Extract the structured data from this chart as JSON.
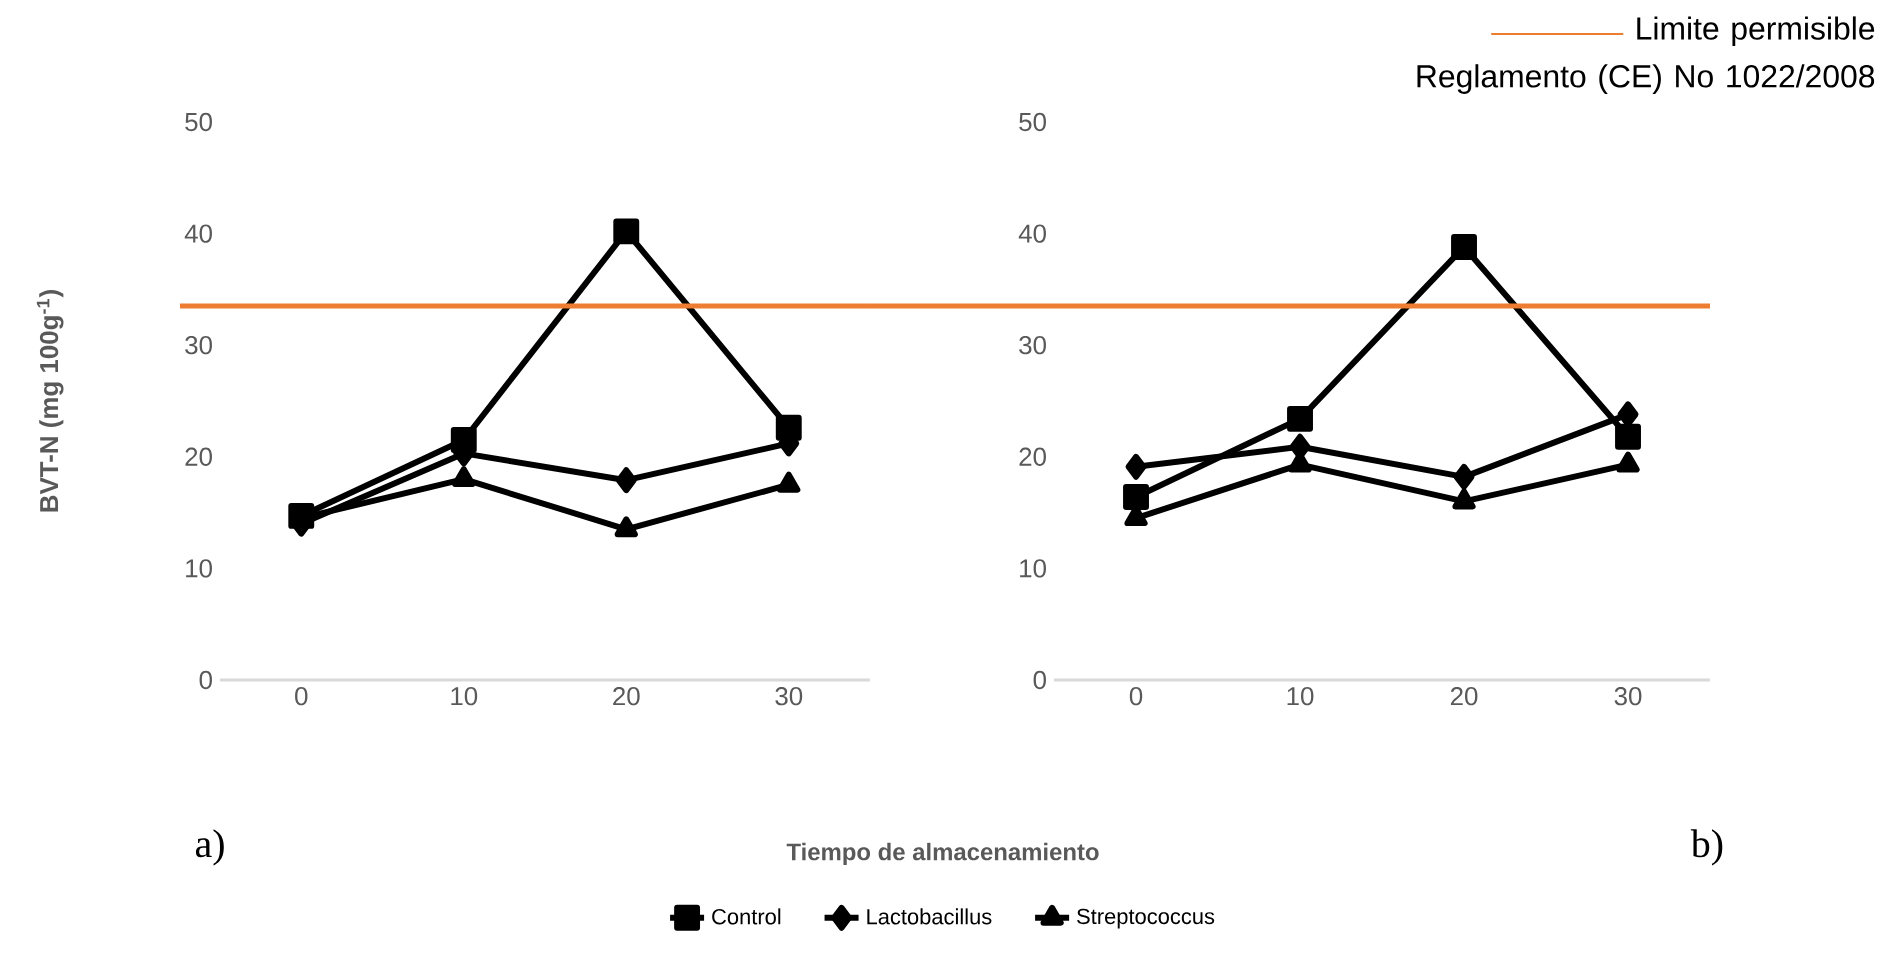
{
  "chart_data": [
    {
      "type": "line",
      "ylabel": "BVT-N (mg 100g$^{-1}$)",
      "xlabel": "Tiempo de almacenamiento",
      "categories": [
        "0",
        "10",
        "20",
        "30"
      ],
      "ylim": [
        0,
        50
      ],
      "yticks": [
        0,
        10,
        20,
        30,
        40,
        50
      ],
      "legend": "bottom",
      "series": [
        {
          "name": "Control",
          "color": "#000000",
          "marker": "square",
          "values": [
            14.7,
            21.5,
            40.2,
            22.6
          ]
        },
        {
          "name": "Lactobacillus",
          "color": "#000000",
          "marker": "diamond",
          "values": [
            14.0,
            20.3,
            17.9,
            21.2
          ]
        },
        {
          "name": "Streptococcus",
          "color": "#000000",
          "marker": "triangle",
          "values": [
            14.5,
            18.0,
            13.5,
            17.5
          ]
        }
      ],
      "ref_lines": [
        {
          "axis": "y",
          "value": 33.5,
          "color": "#ed7d31"
        }
      ],
      "annotations": [
        "a)"
      ]
    },
    {
      "type": "line",
      "categories": [
        "0",
        "10",
        "20",
        "30"
      ],
      "ylim": [
        0,
        50
      ],
      "yticks": [
        0,
        10,
        20,
        30,
        40,
        50
      ],
      "series": [
        {
          "color": "#000000",
          "marker": "square",
          "values": [
            16.4,
            23.4,
            38.8,
            21.8
          ]
        },
        {
          "color": "#000000",
          "marker": "diamond",
          "values": [
            19.1,
            20.9,
            18.2,
            23.8
          ]
        },
        {
          "color": "#000000",
          "marker": "triangle",
          "values": [
            14.5,
            19.3,
            16.0,
            19.3
          ]
        }
      ],
      "ref_lines": [
        {
          "axis": "y",
          "value": 33.5,
          "color": "#ed7d31",
          "label": "Limite permisible Reglamento (CE) No 1022/2008"
        }
      ],
      "annotations": [
        "b)"
      ]
    }
  ]
}
